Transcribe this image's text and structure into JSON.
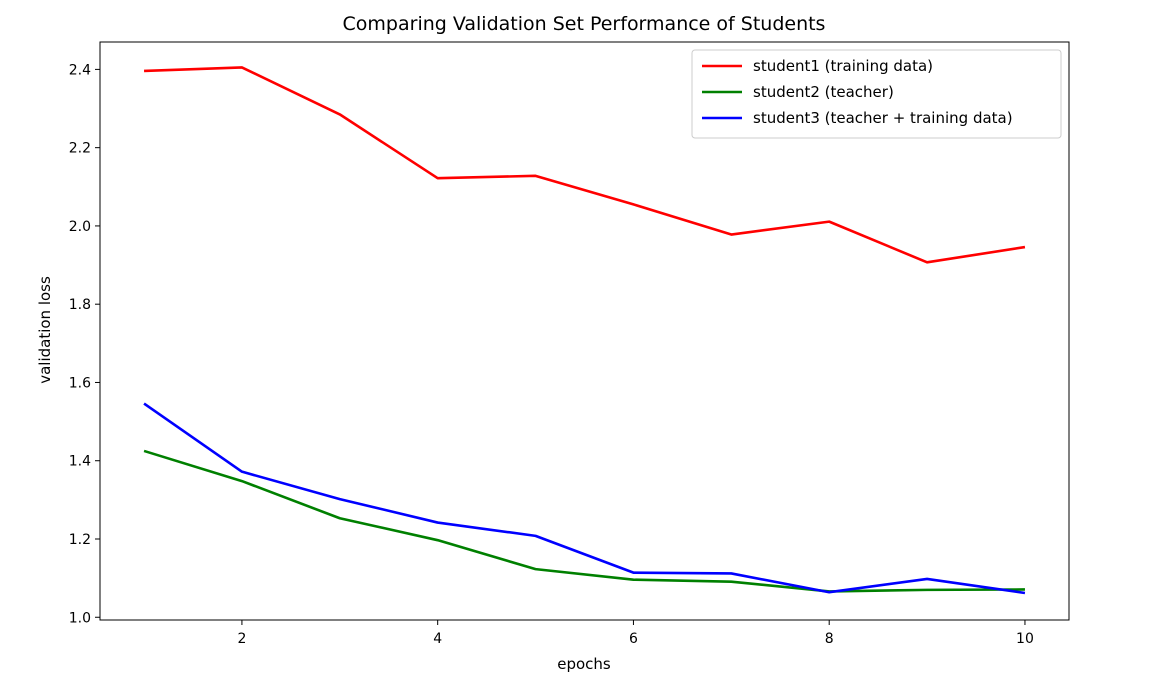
{
  "chart_data": {
    "type": "line",
    "title": "Comparing Validation Set Performance of Students",
    "xlabel": "epochs",
    "ylabel": "validation loss",
    "x": [
      1,
      2,
      3,
      4,
      5,
      6,
      7,
      8,
      9,
      10
    ],
    "xlim": [
      0.55,
      10.45
    ],
    "ylim": [
      0.993,
      2.47
    ],
    "xticks": [
      2,
      4,
      6,
      8,
      10
    ],
    "yticks": [
      1.0,
      1.2,
      1.4,
      1.6,
      1.8,
      2.0,
      2.2,
      2.4
    ],
    "xtick_labels": [
      "2",
      "4",
      "6",
      "8",
      "10"
    ],
    "ytick_labels": [
      "1.0",
      "1.2",
      "1.4",
      "1.6",
      "1.8",
      "2.0",
      "2.2",
      "2.4"
    ],
    "grid": false,
    "legend_position": "top-right",
    "series": [
      {
        "name": "student1 (training data)",
        "color": "#ff0000",
        "values": [
          2.396,
          2.405,
          2.285,
          2.122,
          2.128,
          2.055,
          1.978,
          2.011,
          1.907,
          1.946
        ]
      },
      {
        "name": "student2 (teacher)",
        "color": "#008000",
        "values": [
          1.425,
          1.348,
          1.253,
          1.197,
          1.123,
          1.096,
          1.091,
          1.066,
          1.07,
          1.071
        ]
      },
      {
        "name": "student3 (teacher + training data)",
        "color": "#0000ff",
        "values": [
          1.546,
          1.372,
          1.302,
          1.242,
          1.208,
          1.114,
          1.112,
          1.064,
          1.098,
          1.062
        ]
      }
    ]
  }
}
